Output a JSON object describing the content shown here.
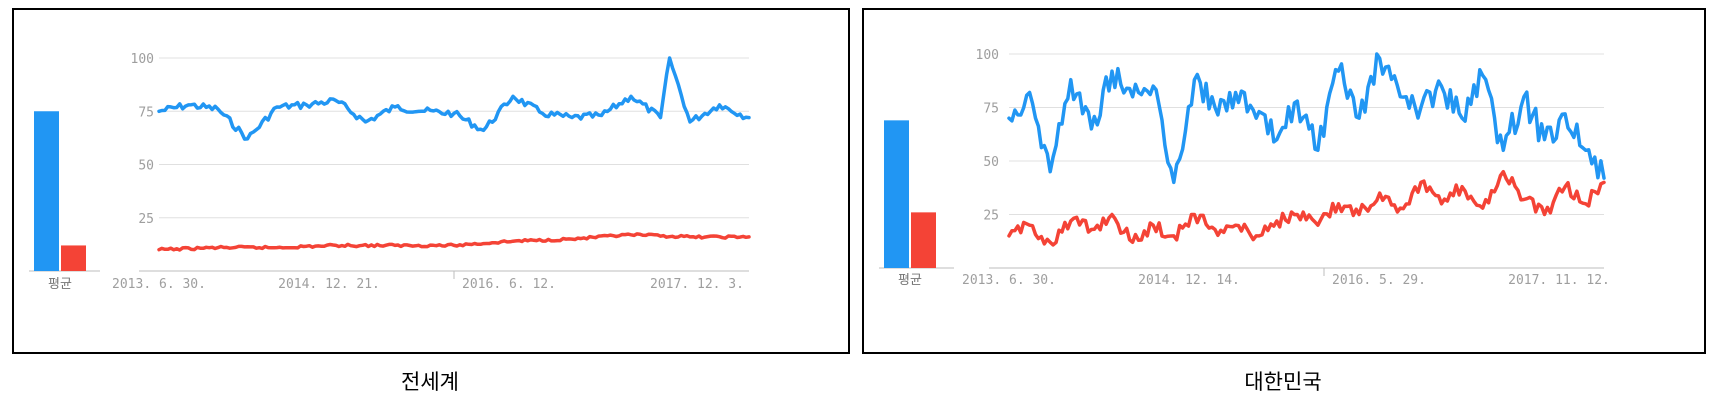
{
  "colors": {
    "series1": "#2196f3",
    "series2": "#f44336",
    "grid": "#e0e0e0",
    "axis": "#bdbdbd",
    "text": "#9e9e9e"
  },
  "chart_data": [
    {
      "type": "line",
      "caption": "전세계",
      "avg_label": "평균",
      "averages": [
        75,
        12
      ],
      "ylim": [
        0,
        100
      ],
      "yticks": [
        25,
        50,
        75,
        100
      ],
      "xticks": [
        "2013. 6. 30.",
        "2014. 12. 21.",
        "2016. 6. 12.",
        "2017. 12. 3."
      ],
      "x_range": [
        "2013-06-30",
        "2018-06-24"
      ],
      "series": [
        {
          "x": [
            "2013-06-30",
            "2013-09-29",
            "2013-12-29",
            "2014-03-30",
            "2014-06-29",
            "2014-09-28",
            "2014-12-28",
            "2015-03-29",
            "2015-06-28",
            "2015-09-27",
            "2015-12-27",
            "2016-03-27",
            "2016-06-26",
            "2016-09-25",
            "2016-12-25",
            "2017-03-26",
            "2017-06-25",
            "2017-09-24",
            "2017-10-22",
            "2017-12-24",
            "2018-03-25",
            "2018-06-24"
          ],
          "values": [
            75,
            78,
            76,
            62,
            77,
            78,
            80,
            70,
            77,
            75,
            74,
            66,
            82,
            74,
            72,
            73,
            82,
            72,
            100,
            70,
            78,
            72
          ]
        },
        {
          "x": [
            "2013-06-30",
            "2013-12-29",
            "2014-06-29",
            "2014-12-28",
            "2015-06-28",
            "2015-12-27",
            "2016-06-26",
            "2016-12-25",
            "2017-06-25",
            "2017-12-24",
            "2018-06-24"
          ],
          "values": [
            10,
            11,
            11,
            12,
            12,
            12,
            14,
            15,
            17,
            16,
            16
          ]
        }
      ]
    },
    {
      "type": "line",
      "caption": "대한민국",
      "avg_label": "평균",
      "averages": [
        69,
        26
      ],
      "ylim": [
        0,
        100
      ],
      "yticks": [
        25,
        50,
        75,
        100
      ],
      "xticks": [
        "2013. 6. 30.",
        "2014. 12. 14.",
        "2016. 5. 29.",
        "2017. 11. 12."
      ],
      "x_range": [
        "2013-06-30",
        "2018-06-24"
      ],
      "series": [
        {
          "x": [
            "2013-06-30",
            "2013-09-01",
            "2013-11-03",
            "2014-01-05",
            "2014-03-09",
            "2014-05-11",
            "2014-07-13",
            "2014-09-14",
            "2014-11-16",
            "2015-01-18",
            "2015-03-22",
            "2015-05-24",
            "2015-07-26",
            "2015-09-27",
            "2015-11-29",
            "2016-01-31",
            "2016-04-03",
            "2016-06-05",
            "2016-08-07",
            "2016-10-09",
            "2016-12-11",
            "2017-02-12",
            "2017-04-16",
            "2017-06-18",
            "2017-08-20",
            "2017-10-22",
            "2017-12-24",
            "2018-02-25",
            "2018-04-29",
            "2018-06-24"
          ],
          "values": [
            70,
            82,
            45,
            88,
            65,
            92,
            80,
            85,
            40,
            88,
            75,
            82,
            70,
            60,
            78,
            55,
            92,
            70,
            98,
            80,
            75,
            85,
            70,
            90,
            55,
            80,
            60,
            72,
            55,
            42
          ]
        },
        {
          "x": [
            "2013-06-30",
            "2013-09-01",
            "2013-11-03",
            "2014-01-05",
            "2014-03-09",
            "2014-05-11",
            "2014-07-13",
            "2014-09-14",
            "2014-11-16",
            "2015-01-18",
            "2015-03-22",
            "2015-05-24",
            "2015-07-26",
            "2015-09-27",
            "2015-11-29",
            "2016-01-31",
            "2016-04-03",
            "2016-06-05",
            "2016-08-07",
            "2016-10-09",
            "2016-12-11",
            "2017-02-12",
            "2017-04-16",
            "2017-06-18",
            "2017-08-20",
            "2017-10-22",
            "2017-12-24",
            "2018-02-25",
            "2018-04-29",
            "2018-06-24"
          ],
          "values": [
            15,
            20,
            12,
            22,
            18,
            25,
            12,
            20,
            15,
            25,
            18,
            20,
            15,
            22,
            25,
            20,
            30,
            25,
            35,
            28,
            40,
            30,
            38,
            28,
            45,
            32,
            25,
            38,
            30,
            40
          ]
        }
      ]
    }
  ]
}
